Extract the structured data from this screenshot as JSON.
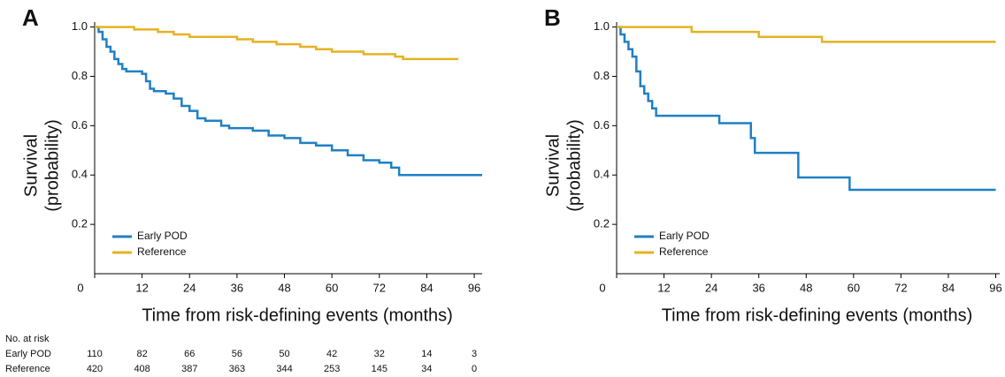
{
  "chart_data": [
    {
      "type": "step",
      "panel_label": "A",
      "ylabel": [
        "Survival",
        "(probability)"
      ],
      "xlabel": "Time from risk-defining events (months)",
      "xlim": [
        0,
        98
      ],
      "ylim": [
        0,
        1.02
      ],
      "xticks": [
        0,
        12,
        24,
        36,
        48,
        60,
        72,
        84,
        96
      ],
      "yticks": [
        0.2,
        0.4,
        0.6,
        0.8,
        {
          "value": 1,
          "label": "1.0"
        }
      ],
      "legend": "lower left",
      "series": [
        {
          "name": "Early POD",
          "color": "#1f80c4",
          "x": [
            0,
            1,
            2,
            3,
            4,
            5,
            6,
            7,
            8,
            12,
            13,
            14,
            15,
            18,
            20,
            22,
            24,
            26,
            28,
            32,
            34,
            40,
            44,
            48,
            52,
            56,
            60,
            64,
            68,
            72,
            75,
            77,
            98
          ],
          "values": [
            1.0,
            0.98,
            0.95,
            0.92,
            0.9,
            0.87,
            0.85,
            0.83,
            0.82,
            0.81,
            0.78,
            0.75,
            0.74,
            0.73,
            0.71,
            0.68,
            0.66,
            0.63,
            0.62,
            0.6,
            0.59,
            0.58,
            0.56,
            0.55,
            0.53,
            0.52,
            0.5,
            0.48,
            0.46,
            0.45,
            0.43,
            0.4,
            0.4
          ]
        },
        {
          "name": "Reference",
          "color": "#e6b222",
          "x": [
            0,
            10,
            16,
            20,
            24,
            36,
            40,
            46,
            52,
            56,
            60,
            68,
            76,
            78,
            92
          ],
          "values": [
            1.0,
            0.99,
            0.98,
            0.97,
            0.96,
            0.95,
            0.94,
            0.93,
            0.92,
            0.91,
            0.9,
            0.89,
            0.88,
            0.87,
            0.87
          ]
        }
      ],
      "risk_table": {
        "title": "No. at risk",
        "rows": [
          {
            "name": "Early POD",
            "values": [
              110,
              82,
              66,
              56,
              50,
              42,
              32,
              14,
              3
            ]
          },
          {
            "name": "Reference",
            "values": [
              420,
              408,
              387,
              363,
              344,
              253,
              145,
              34,
              0
            ]
          }
        ]
      }
    },
    {
      "type": "step",
      "panel_label": "B",
      "ylabel": [
        "Survival",
        "(probability)"
      ],
      "xlabel": "Time from risk-defining events (months)",
      "xlim": [
        0,
        97
      ],
      "ylim": [
        0,
        1.02
      ],
      "xticks": [
        0,
        12,
        24,
        36,
        48,
        60,
        72,
        84,
        96
      ],
      "yticks": [
        0.2,
        0.4,
        0.6,
        0.8,
        {
          "value": 1,
          "label": "1.0"
        }
      ],
      "legend": "lower left",
      "series": [
        {
          "name": "Early POD",
          "color": "#1f80c4",
          "x": [
            0,
            1,
            2,
            3,
            4,
            5,
            6,
            7,
            8,
            9,
            10,
            26,
            34,
            35,
            46,
            59,
            96
          ],
          "values": [
            1.0,
            0.97,
            0.94,
            0.91,
            0.88,
            0.82,
            0.76,
            0.73,
            0.7,
            0.67,
            0.64,
            0.61,
            0.55,
            0.49,
            0.39,
            0.34,
            0.34
          ]
        },
        {
          "name": "Reference",
          "color": "#e6b222",
          "x": [
            0,
            19,
            36,
            52,
            96
          ],
          "values": [
            1.0,
            0.98,
            0.96,
            0.94,
            0.94
          ]
        }
      ]
    }
  ]
}
